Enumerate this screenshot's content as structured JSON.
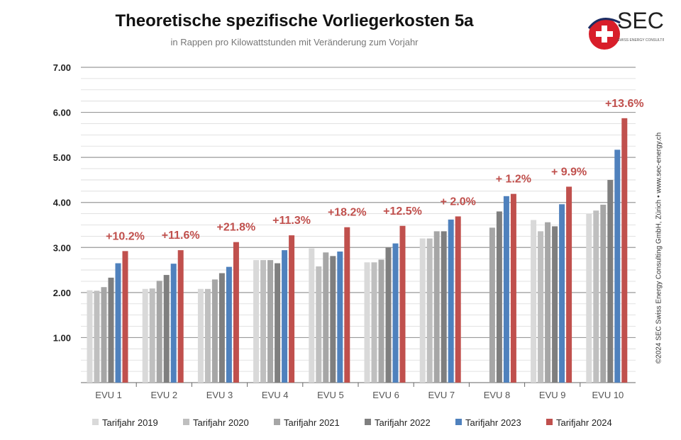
{
  "title": "Theoretische spezifische Vorliegerkosten 5a",
  "subtitle": "in Rappen pro Kilowattstunden mit Veränderung zum Vorjahr",
  "logo": {
    "text": "SEC",
    "subtext": "SWISS ENERGY CONSULTING GmbH",
    "colors": {
      "red": "#d81e2a",
      "blue": "#1c2c63"
    }
  },
  "copyright": "©2024 SEC Swiss Energy Consulting GmbH, Zürich • www.sec-energy.ch",
  "chart_data": {
    "type": "bar",
    "categories": [
      "EVU 1",
      "EVU 2",
      "EVU 3",
      "EVU 4",
      "EVU 5",
      "EVU 6",
      "EVU 7",
      "EVU 8",
      "EVU 9",
      "EVU 10"
    ],
    "ylim": [
      0,
      7
    ],
    "yticks": [
      "1.00",
      "2.00",
      "3.00",
      "4.00",
      "5.00",
      "6.00",
      "7.00"
    ],
    "grid": true,
    "legend_position": "bottom",
    "series": [
      {
        "name": "Tarifjahr 2019",
        "color": "#d9d9d9",
        "values": [
          2.05,
          2.08,
          2.08,
          2.72,
          2.98,
          2.67,
          3.2,
          null,
          3.61,
          3.75
        ]
      },
      {
        "name": "Tarifjahr 2020",
        "color": "#bfbfbf",
        "values": [
          2.04,
          2.09,
          2.08,
          2.72,
          2.58,
          2.67,
          3.2,
          null,
          3.36,
          3.82
        ]
      },
      {
        "name": "Tarifjahr 2021",
        "color": "#a6a6a6",
        "values": [
          2.12,
          2.26,
          2.29,
          2.72,
          2.89,
          2.73,
          3.36,
          3.44,
          3.56,
          3.95
        ]
      },
      {
        "name": "Tarifjahr 2022",
        "color": "#7f7f7f",
        "values": [
          2.33,
          2.39,
          2.43,
          2.65,
          2.81,
          3.0,
          3.36,
          3.8,
          3.47,
          4.5
        ]
      },
      {
        "name": "Tarifjahr 2023",
        "color": "#4f81bd",
        "values": [
          2.65,
          2.64,
          2.57,
          2.94,
          2.91,
          3.09,
          3.62,
          4.14,
          3.96,
          5.17
        ]
      },
      {
        "name": "Tarifjahr 2024",
        "color": "#c0504d",
        "values": [
          2.92,
          2.94,
          3.12,
          3.27,
          3.45,
          3.48,
          3.69,
          4.19,
          4.35,
          5.87
        ]
      }
    ],
    "annotations": [
      "+10.2%",
      "+11.6%",
      "+21.8%",
      "+11.3%",
      "+18.2%",
      "+12.5%",
      "+ 2.0%",
      "+ 1.2%",
      "+ 9.9%",
      "+13.6%"
    ]
  }
}
